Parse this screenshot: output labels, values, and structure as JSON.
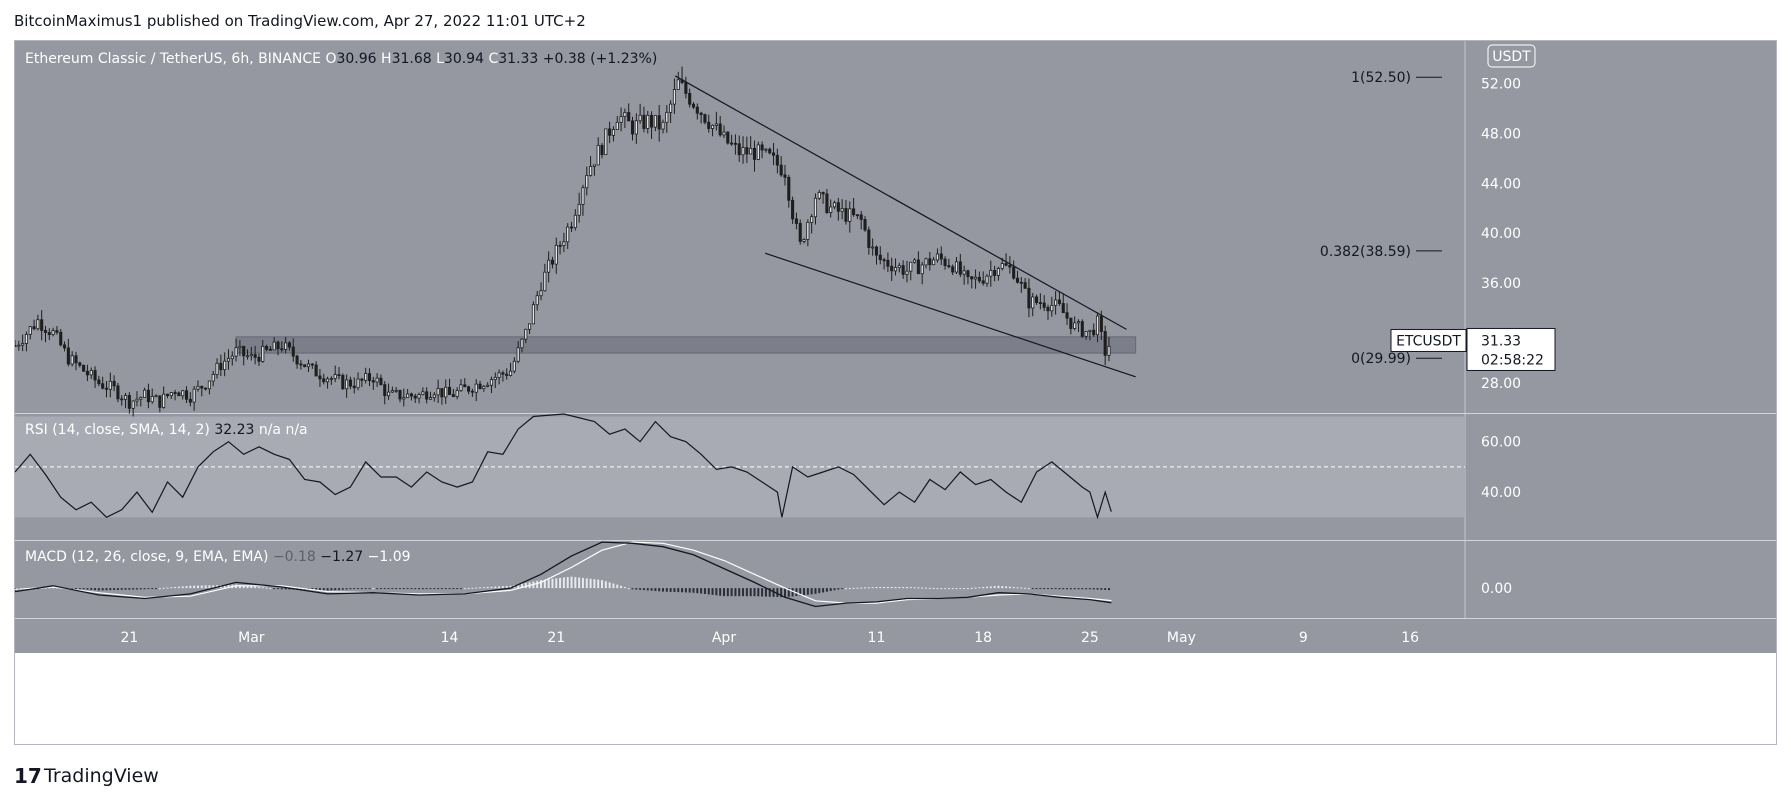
{
  "header": {
    "published_line": "BitcoinMaximus1 published on TradingView.com, Apr 27, 2022 11:01 UTC+2"
  },
  "footer": {
    "logo_glyph": "17",
    "brand": "TradingView"
  },
  "colors": {
    "pane_bg": "#9598a1",
    "rsi_band": "#a8abb3",
    "support_band": "#787b86",
    "candle": "#1e1e1e",
    "candle_wick": "#1e1e1e",
    "axis_text": "#ffffff",
    "line": "#131722"
  },
  "chart_data": [
    {
      "type": "candlestick",
      "title": "Ethereum Classic / TetherUS, 6h, BINANCE",
      "ohlc_label": {
        "o": "O",
        "o_val": "30.96",
        "h": "H",
        "h_val": "31.68",
        "l": "L",
        "l_val": "30.94",
        "c": "C",
        "c_val": "31.33",
        "change": "+0.38 (+1.23%)"
      },
      "currency_button": "USDT",
      "y_ticks": [
        "52.00",
        "48.00",
        "44.00",
        "40.00",
        "36.00",
        "28.00"
      ],
      "y_tick_values": [
        52,
        48,
        44,
        40,
        36,
        28
      ],
      "ylim": [
        25.6,
        55.4
      ],
      "x_tick_labels": [
        "21",
        "Mar",
        "14",
        "21",
        "Apr",
        "11",
        "18",
        "25",
        "May",
        "9",
        "16"
      ],
      "x_tick_days": [
        0,
        8,
        21,
        28,
        39,
        49,
        56,
        63,
        69,
        77,
        84
      ],
      "x_axis_start_day": -7.5,
      "x_axis_end_day": 87.6,
      "last_price_tag": {
        "symbol": "ETCUSDT",
        "price": "31.33",
        "countdown": "02:58:22"
      },
      "fib_levels": [
        {
          "label": "1(52.50)",
          "value": 52.5
        },
        {
          "label": "0.382(38.59)",
          "value": 38.59
        },
        {
          "label": "0(29.99)",
          "value": 29.99
        }
      ],
      "support_band": {
        "from_day": 7,
        "to_day": 66,
        "low": 30.4,
        "high": 31.7
      },
      "wedge_lines": [
        {
          "name": "upper-resistance",
          "p1": {
            "day": 35.8,
            "value": 52.6
          },
          "p2": {
            "day": 65.4,
            "value": 32.3
          }
        },
        {
          "name": "lower-support",
          "p1": {
            "day": 41.7,
            "value": 38.4
          },
          "p2": {
            "day": 66,
            "value": 28.5
          }
        }
      ],
      "series_anchor_points": [
        [
          -7.5,
          31
        ],
        [
          -6,
          33
        ],
        [
          -5,
          32
        ],
        [
          -4,
          30
        ],
        [
          -3,
          29
        ],
        [
          -2,
          28
        ],
        [
          -1,
          27.5
        ],
        [
          0,
          26.5
        ],
        [
          1,
          27
        ],
        [
          2,
          26.5
        ],
        [
          3,
          27.5
        ],
        [
          4,
          27
        ],
        [
          5,
          28
        ],
        [
          6,
          29.5
        ],
        [
          7,
          30.5
        ],
        [
          8,
          30
        ],
        [
          9,
          30.5
        ],
        [
          10,
          31
        ],
        [
          11,
          30
        ],
        [
          12,
          29
        ],
        [
          13,
          28.5
        ],
        [
          14,
          28
        ],
        [
          15,
          28
        ],
        [
          16,
          28.5
        ],
        [
          17,
          27
        ],
        [
          18,
          27
        ],
        [
          19,
          27
        ],
        [
          20,
          27.5
        ],
        [
          21,
          27
        ],
        [
          22,
          27.5
        ],
        [
          23,
          28
        ],
        [
          24,
          28.5
        ],
        [
          25,
          29
        ],
        [
          26,
          32
        ],
        [
          27,
          36
        ],
        [
          28,
          38.5
        ],
        [
          29,
          41
        ],
        [
          30,
          45
        ],
        [
          31,
          47
        ],
        [
          32,
          49.5
        ],
        [
          33,
          48.5
        ],
        [
          34,
          49
        ],
        [
          35,
          48.5
        ],
        [
          36,
          52
        ],
        [
          37,
          50.5
        ],
        [
          38,
          49
        ],
        [
          39,
          47.5
        ],
        [
          40,
          46.5
        ],
        [
          41,
          46.5
        ],
        [
          42,
          46
        ],
        [
          43,
          45
        ],
        [
          43.6,
          41
        ],
        [
          44,
          39
        ],
        [
          45,
          43
        ],
        [
          46,
          42
        ],
        [
          47,
          41.5
        ],
        [
          48,
          41
        ],
        [
          48.6,
          39
        ],
        [
          49,
          38
        ],
        [
          50,
          37.5
        ],
        [
          51,
          37
        ],
        [
          52,
          37.5
        ],
        [
          53,
          38
        ],
        [
          54,
          37.5
        ],
        [
          55,
          36
        ],
        [
          56,
          36.5
        ],
        [
          57,
          37.5
        ],
        [
          58,
          37
        ],
        [
          59,
          34.5
        ],
        [
          60,
          34.5
        ],
        [
          61,
          34
        ],
        [
          62,
          32.5
        ],
        [
          63,
          32
        ],
        [
          63.5,
          32.8
        ],
        [
          64,
          30.5
        ],
        [
          64.4,
          31.33
        ]
      ]
    },
    {
      "type": "line",
      "title": "RSI (14, close, SMA, 14, 2)",
      "readout": "32.23",
      "extra": "n/a n/a",
      "y_ticks": [
        "60.00",
        "40.00"
      ],
      "y_tick_values": [
        60,
        40
      ],
      "ylim": [
        21,
        71
      ],
      "overbought_dash": 50,
      "band": [
        30,
        70
      ],
      "series": [
        {
          "name": "RSI",
          "values": [
            [
              -7.5,
              48
            ],
            [
              -6.5,
              55
            ],
            [
              -5.5,
              47
            ],
            [
              -4.5,
              38
            ],
            [
              -3.5,
              33
            ],
            [
              -2.5,
              36
            ],
            [
              -1.5,
              30
            ],
            [
              -0.5,
              33
            ],
            [
              0.5,
              40
            ],
            [
              1.5,
              32
            ],
            [
              2.5,
              44
            ],
            [
              3.5,
              38
            ],
            [
              4.5,
              50
            ],
            [
              5.5,
              56
            ],
            [
              6.5,
              60
            ],
            [
              7.5,
              55
            ],
            [
              8.5,
              58
            ],
            [
              9.5,
              55
            ],
            [
              10.5,
              53
            ],
            [
              11.5,
              45
            ],
            [
              12.5,
              44
            ],
            [
              13.5,
              39
            ],
            [
              14.5,
              42
            ],
            [
              15.5,
              52
            ],
            [
              16.5,
              46
            ],
            [
              17.5,
              46
            ],
            [
              18.5,
              42
            ],
            [
              19.5,
              48
            ],
            [
              20.5,
              44
            ],
            [
              21.5,
              42
            ],
            [
              22.5,
              44
            ],
            [
              23.5,
              56
            ],
            [
              24.5,
              55
            ],
            [
              25.5,
              65
            ],
            [
              26.5,
              70
            ],
            [
              28.5,
              72
            ],
            [
              30.5,
              68
            ],
            [
              31.5,
              63
            ],
            [
              32.5,
              65
            ],
            [
              33.5,
              60
            ],
            [
              34.5,
              68
            ],
            [
              35.5,
              62
            ],
            [
              36.5,
              60
            ],
            [
              37.5,
              55
            ],
            [
              38.5,
              49
            ],
            [
              39.5,
              50
            ],
            [
              40.5,
              48
            ],
            [
              41.5,
              44
            ],
            [
              42.5,
              40
            ],
            [
              42.8,
              30
            ],
            [
              43.5,
              50
            ],
            [
              44.5,
              46
            ],
            [
              45.5,
              48
            ],
            [
              46.5,
              50
            ],
            [
              47.5,
              47
            ],
            [
              48.5,
              41
            ],
            [
              49.5,
              35
            ],
            [
              50.5,
              40
            ],
            [
              51.5,
              36
            ],
            [
              52.5,
              45
            ],
            [
              53.5,
              41
            ],
            [
              54.5,
              48
            ],
            [
              55.5,
              43
            ],
            [
              56.5,
              45
            ],
            [
              57.5,
              40
            ],
            [
              58.5,
              36
            ],
            [
              59.5,
              48
            ],
            [
              60.5,
              52
            ],
            [
              61.5,
              47
            ],
            [
              62.5,
              42
            ],
            [
              63,
              40
            ],
            [
              63.5,
              30
            ],
            [
              64,
              40
            ],
            [
              64.4,
              32.23
            ]
          ]
        }
      ]
    },
    {
      "type": "line",
      "title": "MACD (12, 26, close, 9, EMA, EMA)",
      "readouts": [
        "−0.18",
        "−1.27",
        "−1.09"
      ],
      "y_ticks": [
        "0.00"
      ],
      "y_tick_values": [
        0
      ],
      "ylim": [
        -2.6,
        4.1
      ],
      "series": [
        {
          "name": "MACD",
          "values": [
            [
              -7.5,
              -0.3
            ],
            [
              -5,
              0.2
            ],
            [
              -2,
              -0.6
            ],
            [
              1,
              -0.9
            ],
            [
              4,
              -0.5
            ],
            [
              7,
              0.5
            ],
            [
              10,
              0.1
            ],
            [
              13,
              -0.5
            ],
            [
              16,
              -0.4
            ],
            [
              19,
              -0.6
            ],
            [
              22,
              -0.5
            ],
            [
              25,
              0
            ],
            [
              27,
              1.2
            ],
            [
              29,
              2.8
            ],
            [
              31,
              4
            ],
            [
              33,
              3.9
            ],
            [
              35,
              3.6
            ],
            [
              37,
              2.9
            ],
            [
              39,
              1.7
            ],
            [
              41,
              0.5
            ],
            [
              43,
              -0.8
            ],
            [
              45,
              -1.6
            ],
            [
              47,
              -1.3
            ],
            [
              49,
              -1.2
            ],
            [
              51,
              -0.9
            ],
            [
              53,
              -0.9
            ],
            [
              55,
              -0.8
            ],
            [
              57,
              -0.4
            ],
            [
              59,
              -0.5
            ],
            [
              61,
              -0.8
            ],
            [
              63,
              -1.0
            ],
            [
              64.4,
              -1.27
            ]
          ]
        },
        {
          "name": "Signal",
          "values": [
            [
              -7.5,
              -0.1
            ],
            [
              -5,
              0.1
            ],
            [
              -2,
              -0.4
            ],
            [
              1,
              -0.8
            ],
            [
              4,
              -0.7
            ],
            [
              7,
              0.2
            ],
            [
              10,
              0.2
            ],
            [
              13,
              -0.3
            ],
            [
              16,
              -0.4
            ],
            [
              19,
              -0.5
            ],
            [
              22,
              -0.5
            ],
            [
              25,
              -0.2
            ],
            [
              27,
              0.5
            ],
            [
              29,
              1.8
            ],
            [
              31,
              3.3
            ],
            [
              33,
              4
            ],
            [
              35,
              3.9
            ],
            [
              37,
              3.3
            ],
            [
              39,
              2.4
            ],
            [
              41,
              1.2
            ],
            [
              43,
              0
            ],
            [
              45,
              -1.1
            ],
            [
              47,
              -1.3
            ],
            [
              49,
              -1.3
            ],
            [
              51,
              -1.0
            ],
            [
              53,
              -0.9
            ],
            [
              55,
              -0.8
            ],
            [
              57,
              -0.6
            ],
            [
              59,
              -0.5
            ],
            [
              61,
              -0.7
            ],
            [
              63,
              -0.9
            ],
            [
              64.4,
              -1.09
            ]
          ]
        }
      ]
    }
  ]
}
